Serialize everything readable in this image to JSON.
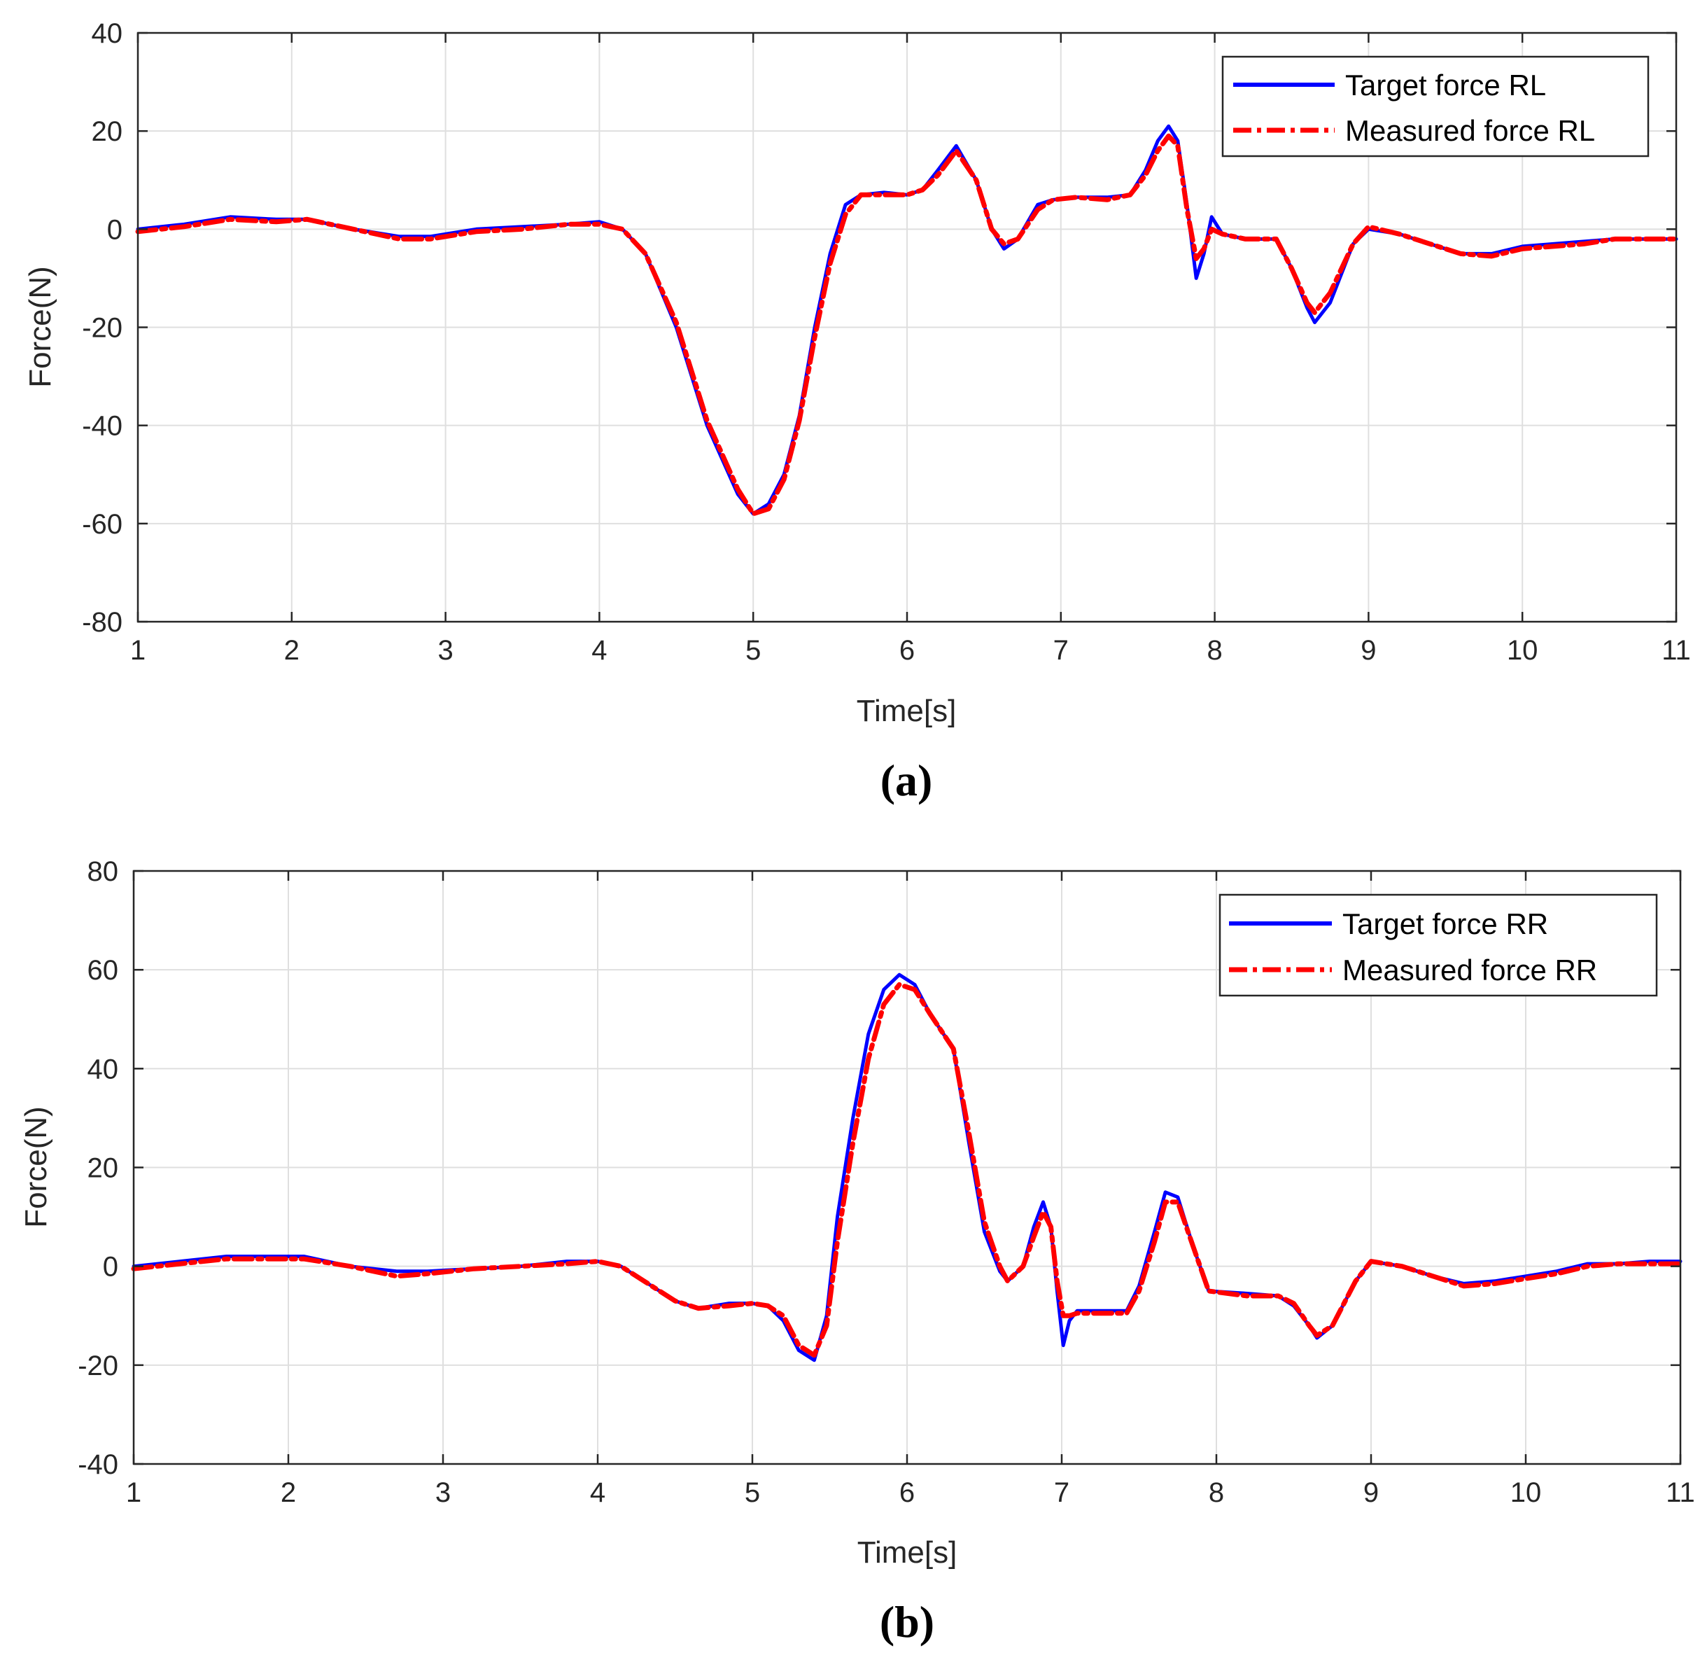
{
  "chart_data": [
    {
      "type": "line",
      "panel_label": "(a)",
      "xlabel": "Time[s]",
      "ylabel": "Force(N)",
      "xlim": [
        1,
        11
      ],
      "ylim": [
        -80,
        40
      ],
      "xticks": [
        1,
        2,
        3,
        4,
        5,
        6,
        7,
        8,
        9,
        10,
        11
      ],
      "yticks": [
        -80,
        -60,
        -40,
        -20,
        0,
        20,
        40
      ],
      "grid": true,
      "legend_position": "top-right",
      "series": [
        {
          "name": "Target force RL",
          "color": "#0000ff",
          "style": "solid",
          "x": [
            1.0,
            1.3,
            1.6,
            1.9,
            2.1,
            2.4,
            2.7,
            2.9,
            3.2,
            3.5,
            3.8,
            4.0,
            4.15,
            4.3,
            4.5,
            4.7,
            4.9,
            5.0,
            5.1,
            5.2,
            5.3,
            5.4,
            5.5,
            5.6,
            5.7,
            5.85,
            6.0,
            6.1,
            6.2,
            6.32,
            6.45,
            6.55,
            6.63,
            6.72,
            6.85,
            6.95,
            7.1,
            7.3,
            7.45,
            7.55,
            7.63,
            7.7,
            7.76,
            7.82,
            7.88,
            7.93,
            7.98,
            8.05,
            8.2,
            8.4,
            8.5,
            8.6,
            8.65,
            8.75,
            8.9,
            9.0,
            9.2,
            9.4,
            9.6,
            9.8,
            10.0,
            10.2,
            10.4,
            10.6,
            10.8,
            11.0
          ],
          "values": [
            0,
            1,
            2.5,
            2,
            2,
            0,
            -1.5,
            -1.5,
            0,
            0.5,
            1,
            1.5,
            0,
            -5,
            -20,
            -40,
            -54,
            -58,
            -56,
            -50,
            -38,
            -20,
            -5,
            5,
            7,
            7.5,
            7,
            8,
            12,
            17,
            10,
            0,
            -4,
            -2,
            5,
            6,
            6.5,
            6.5,
            7,
            12,
            18,
            21,
            18,
            5,
            -10,
            -5,
            2.5,
            -1,
            -2,
            -2,
            -8,
            -16,
            -19,
            -15,
            -3,
            0,
            -1,
            -3,
            -5,
            -5,
            -3.5,
            -3,
            -2.5,
            -2,
            -2,
            -2
          ]
        },
        {
          "name": "Measured force RL",
          "color": "#ff0000",
          "style": "dashdot",
          "x": [
            1.0,
            1.3,
            1.6,
            1.9,
            2.1,
            2.4,
            2.7,
            2.9,
            3.2,
            3.5,
            3.8,
            4.0,
            4.15,
            4.3,
            4.5,
            4.7,
            4.9,
            5.0,
            5.1,
            5.2,
            5.3,
            5.4,
            5.5,
            5.6,
            5.7,
            5.85,
            6.0,
            6.1,
            6.2,
            6.32,
            6.45,
            6.55,
            6.63,
            6.72,
            6.85,
            6.95,
            7.1,
            7.3,
            7.45,
            7.55,
            7.63,
            7.7,
            7.76,
            7.82,
            7.88,
            7.93,
            7.98,
            8.05,
            8.2,
            8.4,
            8.5,
            8.6,
            8.65,
            8.75,
            8.9,
            9.0,
            9.2,
            9.4,
            9.6,
            9.8,
            10.0,
            10.2,
            10.4,
            10.6,
            10.8,
            11.0
          ],
          "values": [
            -0.5,
            0.5,
            2,
            1.5,
            2,
            0,
            -2,
            -2,
            -0.5,
            0,
            1,
            1,
            0,
            -5,
            -19,
            -39,
            -53,
            -58,
            -57,
            -51,
            -39,
            -22,
            -7,
            3,
            7,
            7,
            7,
            8,
            11,
            16,
            10,
            0,
            -3,
            -2,
            4,
            6,
            6.5,
            6,
            7,
            11,
            16,
            19,
            17,
            4,
            -6,
            -4,
            0,
            -1,
            -2,
            -2,
            -8,
            -15,
            -17,
            -13,
            -3,
            0.5,
            -1,
            -3,
            -5,
            -5.5,
            -4,
            -3.5,
            -3,
            -2,
            -2,
            -2
          ]
        }
      ]
    },
    {
      "type": "line",
      "panel_label": "(b)",
      "xlabel": "Time[s]",
      "ylabel": "Force(N)",
      "xlim": [
        1,
        11
      ],
      "ylim": [
        -40,
        80
      ],
      "xticks": [
        1,
        2,
        3,
        4,
        5,
        6,
        7,
        8,
        9,
        10,
        11
      ],
      "yticks": [
        -40,
        -20,
        0,
        20,
        40,
        60,
        80
      ],
      "grid": true,
      "legend_position": "top-right",
      "series": [
        {
          "name": "Target force RR",
          "color": "#0000ff",
          "style": "solid",
          "x": [
            1.0,
            1.3,
            1.6,
            1.9,
            2.1,
            2.4,
            2.7,
            2.9,
            3.2,
            3.5,
            3.8,
            4.0,
            4.15,
            4.3,
            4.5,
            4.65,
            4.85,
            5.0,
            5.1,
            5.2,
            5.3,
            5.4,
            5.48,
            5.55,
            5.65,
            5.75,
            5.85,
            5.95,
            6.05,
            6.15,
            6.3,
            6.4,
            6.5,
            6.6,
            6.65,
            6.75,
            6.82,
            6.88,
            6.93,
            6.97,
            7.01,
            7.05,
            7.1,
            7.3,
            7.42,
            7.5,
            7.6,
            7.67,
            7.75,
            7.85,
            7.95,
            8.2,
            8.4,
            8.5,
            8.6,
            8.65,
            8.75,
            8.9,
            9.0,
            9.2,
            9.4,
            9.6,
            9.8,
            10.0,
            10.2,
            10.4,
            10.6,
            10.8,
            11.0
          ],
          "values": [
            0,
            1,
            2,
            2,
            2,
            0,
            -1,
            -1,
            -0.5,
            0,
            1,
            1,
            0,
            -3,
            -7,
            -8.5,
            -7.5,
            -7.5,
            -8,
            -11,
            -17,
            -19,
            -10,
            10,
            30,
            47,
            56,
            59,
            57,
            51,
            44,
            25,
            7,
            -1,
            -3,
            0,
            8,
            13,
            8,
            -5,
            -16,
            -11,
            -9,
            -9,
            -9,
            -4,
            7,
            15,
            14,
            4,
            -5,
            -5.5,
            -6,
            -8,
            -12,
            -14.5,
            -12,
            -3,
            1,
            0,
            -2,
            -3.5,
            -3,
            -2,
            -1,
            0.5,
            0.5,
            1,
            1
          ]
        },
        {
          "name": "Measured force RR",
          "color": "#ff0000",
          "style": "dashdot",
          "x": [
            1.0,
            1.3,
            1.6,
            1.9,
            2.1,
            2.4,
            2.7,
            2.9,
            3.2,
            3.5,
            3.8,
            4.0,
            4.15,
            4.3,
            4.5,
            4.65,
            4.85,
            5.0,
            5.1,
            5.2,
            5.3,
            5.4,
            5.48,
            5.55,
            5.65,
            5.75,
            5.85,
            5.95,
            6.05,
            6.15,
            6.3,
            6.4,
            6.5,
            6.6,
            6.65,
            6.75,
            6.82,
            6.88,
            6.93,
            6.97,
            7.01,
            7.05,
            7.1,
            7.3,
            7.42,
            7.5,
            7.6,
            7.67,
            7.75,
            7.85,
            7.95,
            8.2,
            8.4,
            8.5,
            8.6,
            8.65,
            8.75,
            8.9,
            9.0,
            9.2,
            9.4,
            9.6,
            9.8,
            10.0,
            10.2,
            10.4,
            10.6,
            10.8,
            11.0
          ],
          "values": [
            -0.5,
            0.5,
            1.5,
            1.5,
            1.5,
            0,
            -2,
            -1.5,
            -0.5,
            0,
            0.5,
            1,
            0,
            -3,
            -7,
            -8.5,
            -8,
            -7.5,
            -8,
            -10,
            -16,
            -18,
            -12,
            5,
            25,
            42,
            53,
            57,
            56,
            51,
            44,
            27,
            9,
            0,
            -3,
            0,
            6,
            11,
            8,
            -3,
            -10,
            -10,
            -9.5,
            -9.5,
            -9.5,
            -5,
            5,
            13,
            13,
            4,
            -5,
            -6,
            -6,
            -7.5,
            -12,
            -14,
            -12,
            -3,
            1,
            0,
            -2,
            -4,
            -3.5,
            -2.5,
            -1.5,
            0,
            0.5,
            0.5,
            0.5
          ]
        }
      ]
    }
  ]
}
